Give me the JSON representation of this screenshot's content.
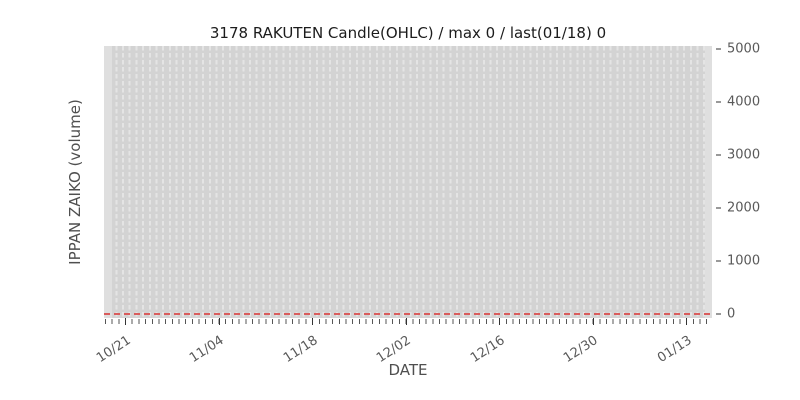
{
  "chart_data": {
    "type": "line",
    "title": "3178 RAKUTEN Candle(OHLC) / max 0 / last(01/18) 0",
    "xlabel": "DATE",
    "ylabel": "IPPAN ZAIKO (volume)",
    "x_tick_labels": [
      "10/21",
      "11/04",
      "11/18",
      "12/02",
      "12/16",
      "12/30",
      "01/13"
    ],
    "y_tick_labels": [
      "0",
      "1000",
      "2000",
      "3000",
      "4000",
      "5000"
    ],
    "ylim": [
      0,
      5000
    ],
    "x_range": "10/18 to 01/17, daily minor ticks, major ticks every 14 days",
    "grid": "vertical dashed daily gridlines on gray plot background, no horizontal gridlines",
    "legend_position": "none",
    "series": [
      {
        "name": "IPPAN ZAIKO (volume)",
        "style": "dashed horizontal line",
        "color": "#d95c5c",
        "constant_value": 0,
        "max": 0,
        "last_date": "01/18",
        "last_value": 0
      }
    ]
  },
  "colors": {
    "figure_background": "#ffffff",
    "plot_background": "#d3d3d3",
    "gridline": "#e4e4e4",
    "zero_line": "#d95c5c",
    "tick_text": "#595959",
    "axis_label_text": "#4f4f4f",
    "title_text": "#1c1c1c"
  }
}
